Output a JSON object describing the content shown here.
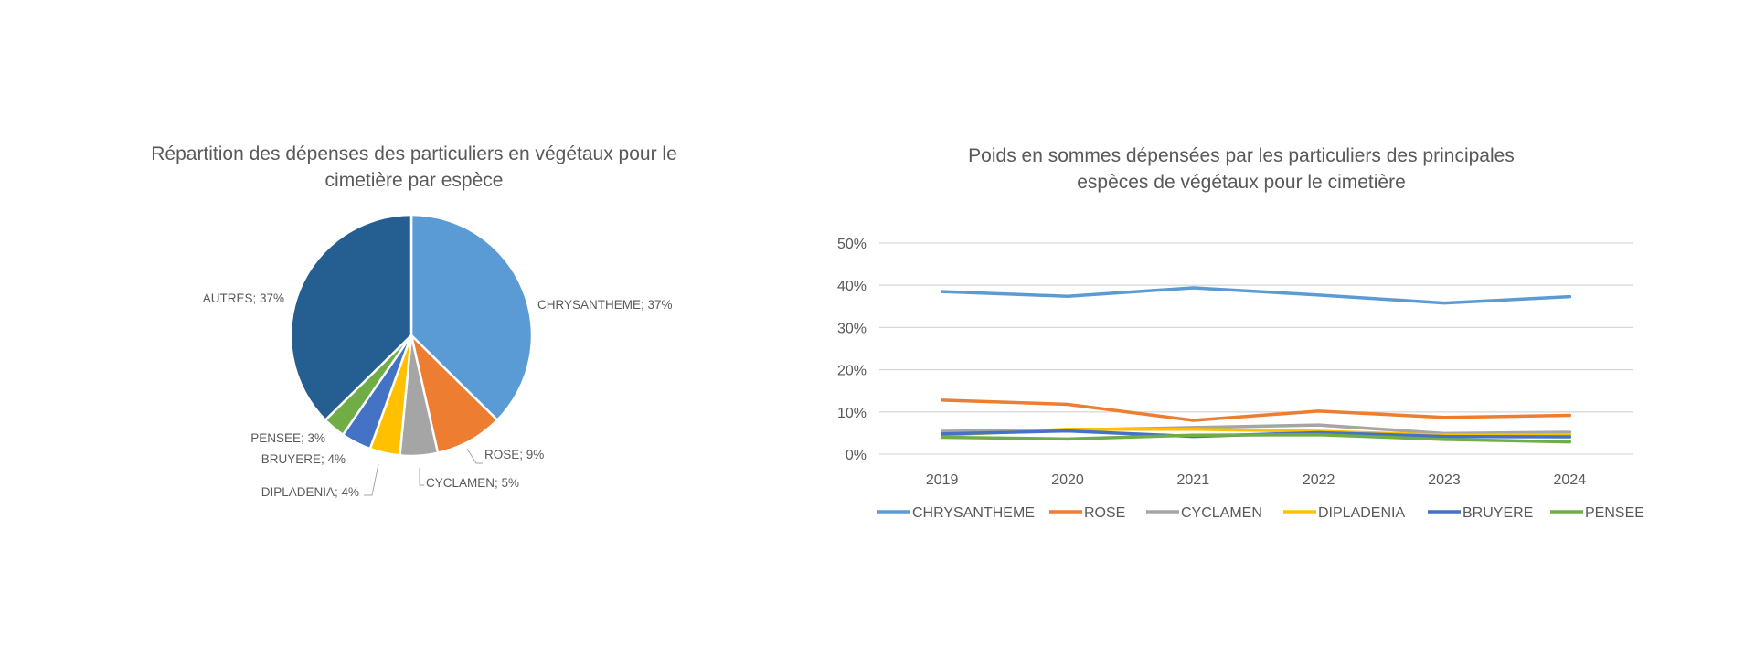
{
  "chart_data": [
    {
      "type": "pie",
      "title_lines": [
        "Répartition des dépenses des particuliers en végétaux pour le",
        "cimetière par espèce"
      ],
      "slices": [
        {
          "label": "CHRYSANTHEME; 37%",
          "name": "CHRYSANTHEME",
          "value": 37,
          "color": "#5B9BD5"
        },
        {
          "label": "ROSE; 9%",
          "name": "ROSE",
          "value": 9,
          "color": "#ED7D31"
        },
        {
          "label": "CYCLAMEN; 5%",
          "name": "CYCLAMEN",
          "value": 5,
          "color": "#A5A5A5"
        },
        {
          "label": "DIPLADENIA; 4%",
          "name": "DIPLADENIA",
          "value": 4,
          "color": "#FFC000"
        },
        {
          "label": "BRUYERE; 4%",
          "name": "BRUYERE",
          "value": 4,
          "color": "#4472C4"
        },
        {
          "label": "PENSEE; 3%",
          "name": "PENSEE",
          "value": 3,
          "color": "#70AD47"
        },
        {
          "label": "AUTRES; 37%",
          "name": "AUTRES",
          "value": 37,
          "color": "#255E91"
        }
      ]
    },
    {
      "type": "line",
      "title_lines": [
        "Poids en sommes dépensées par les particuliers des principales",
        "espèces de végétaux pour le cimetière"
      ],
      "categories": [
        "2019",
        "2020",
        "2021",
        "2022",
        "2023",
        "2024"
      ],
      "ylim": [
        0,
        50
      ],
      "yticks": [
        0,
        10,
        20,
        30,
        40,
        50
      ],
      "ytick_labels": [
        "0%",
        "10%",
        "20%",
        "30%",
        "40%",
        "50%"
      ],
      "grid": true,
      "legend_position": "bottom",
      "series": [
        {
          "name": "CHRYSANTHEME",
          "color": "#5B9BD5",
          "values": [
            38.5,
            37.4,
            39.4,
            37.7,
            35.8,
            37.3
          ]
        },
        {
          "name": "ROSE",
          "color": "#ED7D31",
          "values": [
            12.8,
            11.8,
            8.0,
            10.2,
            8.7,
            9.2
          ]
        },
        {
          "name": "CYCLAMEN",
          "color": "#A5A5A5",
          "values": [
            5.4,
            5.7,
            6.3,
            6.9,
            4.9,
            5.2
          ]
        },
        {
          "name": "DIPLADENIA",
          "color": "#FFC000",
          "values": [
            4.5,
            5.9,
            5.9,
            5.4,
            4.5,
            4.6
          ]
        },
        {
          "name": "BRUYERE",
          "color": "#4472C4",
          "values": [
            4.8,
            5.5,
            4.2,
            5.1,
            4.2,
            4.1
          ]
        },
        {
          "name": "PENSEE",
          "color": "#70AD47",
          "values": [
            4.0,
            3.6,
            4.5,
            4.6,
            3.5,
            2.9
          ]
        }
      ]
    }
  ]
}
